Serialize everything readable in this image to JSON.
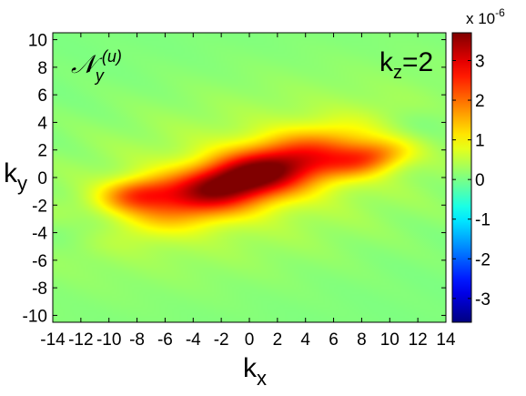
{
  "chart_data": {
    "type": "heatmap",
    "title": "",
    "panel_label": "𝒩",
    "panel_label_sub": "y",
    "panel_label_sup": "(u)",
    "annotation_main": "k",
    "annotation_sub": "z",
    "annotation_value": "=2",
    "xlabel": "k",
    "xlabel_sub": "x",
    "ylabel": "k",
    "ylabel_sub": "y",
    "xlim": [
      -14,
      14
    ],
    "ylim": [
      -10.5,
      10.5
    ],
    "xticks": [
      -14,
      -12,
      -10,
      -8,
      -6,
      -4,
      -2,
      0,
      2,
      4,
      6,
      8,
      10,
      12,
      14
    ],
    "yticks": [
      -10,
      -8,
      -6,
      -4,
      -2,
      0,
      2,
      4,
      6,
      8,
      10
    ],
    "colorbar": {
      "range": [
        -3.6,
        3.7
      ],
      "ticks": [
        -3,
        -2,
        -1,
        0,
        1,
        2,
        3
      ],
      "multiplier_text": "x 10",
      "multiplier_exponent": "-6",
      "colormap": "jet"
    },
    "background_value": 0.05,
    "features": [
      {
        "kind": "ridge",
        "center": [
          0,
          0
        ],
        "sx": 5.2,
        "sy": 1.35,
        "angle_deg": 17,
        "peak": 3.4
      },
      {
        "kind": "ridge",
        "center": [
          -1.5,
          -0.3
        ],
        "sx": 2.5,
        "sy": 0.9,
        "angle_deg": 15,
        "peak": 0.4
      },
      {
        "kind": "tail",
        "center": [
          -8,
          -1.2
        ],
        "sx": 1.8,
        "sy": 0.8,
        "angle_deg": 5,
        "peak": 1.4
      },
      {
        "kind": "tail",
        "center": [
          8.5,
          1.4
        ],
        "sx": 2.0,
        "sy": 0.8,
        "angle_deg": 10,
        "peak": 1.4
      },
      {
        "kind": "halo",
        "center": [
          0,
          0
        ],
        "sx": 10.5,
        "sy": 4.2,
        "angle_deg": 12,
        "peak": 0.55
      },
      {
        "kind": "dip",
        "center": [
          -11,
          -3.5
        ],
        "sx": 2.6,
        "sy": 0.9,
        "angle_deg": 10,
        "peak": -0.35
      },
      {
        "kind": "dip",
        "center": [
          11,
          3.5
        ],
        "sx": 2.8,
        "sy": 1.0,
        "angle_deg": 10,
        "peak": -0.35
      }
    ]
  }
}
